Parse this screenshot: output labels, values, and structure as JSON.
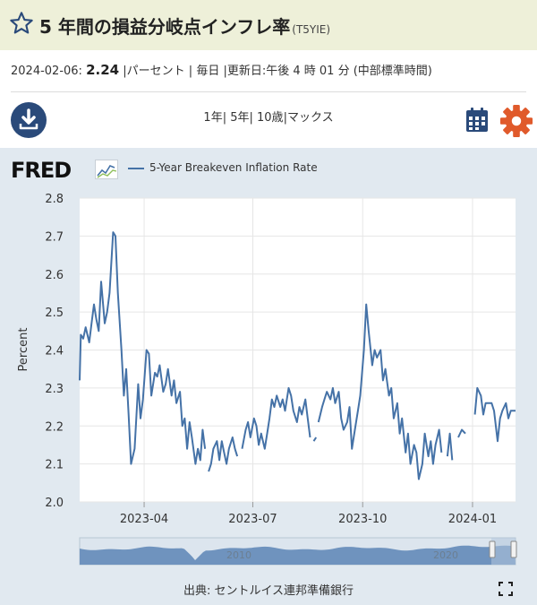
{
  "header": {
    "title": "5 年間の損益分岐点インフレ率",
    "series_code": "(T5YIE)"
  },
  "meta": {
    "date": "2024-02-06:",
    "value": "2.24",
    "unit": "パーセント",
    "frequency": "毎日",
    "updated": "更新日:午後 4 時 01 分 (中部標準時間)"
  },
  "controls": {
    "ranges": [
      "1年",
      "5年",
      "10歳",
      "マックス"
    ],
    "download_icon": "download-icon",
    "calendar_icon": "calendar-icon",
    "settings_icon": "gear-icon"
  },
  "logo": {
    "text": "FRED"
  },
  "footer": {
    "source": "出典: セントルイス連邦準備銀行"
  },
  "colors": {
    "line": "#4572a7",
    "settings": "#e05a2b",
    "icon_dark": "#2a4a7a",
    "title_bg": "#eef0d9",
    "panel_bg": "#e1e9f0"
  },
  "chart_data": {
    "type": "line",
    "ylabel": "Percent",
    "ylim": [
      2.0,
      2.8
    ],
    "yticks": [
      2.0,
      2.1,
      2.2,
      2.3,
      2.4,
      2.5,
      2.6,
      2.7,
      2.8
    ],
    "xlim": [
      "2023-02-06",
      "2024-02-06"
    ],
    "xticks": [
      {
        "date": "2023-04-01",
        "label": "2023-04"
      },
      {
        "date": "2023-07-01",
        "label": "2023-07"
      },
      {
        "date": "2023-10-01",
        "label": "2023-10"
      },
      {
        "date": "2024-01-01",
        "label": "2024-01"
      }
    ],
    "navigator_labels": [
      {
        "year": 2010,
        "label": "2010"
      },
      {
        "year": 2020,
        "label": "2020"
      }
    ],
    "series": [
      {
        "name": "5-Year Breakeven Inflation Rate",
        "segments": [
          [
            [
              "2023-02-06",
              2.32
            ],
            [
              "2023-02-07",
              2.44
            ],
            [
              "2023-02-09",
              2.43
            ],
            [
              "2023-02-11",
              2.46
            ],
            [
              "2023-02-14",
              2.42
            ],
            [
              "2023-02-16",
              2.47
            ],
            [
              "2023-02-18",
              2.52
            ],
            [
              "2023-02-20",
              2.48
            ],
            [
              "2023-02-22",
              2.45
            ],
            [
              "2023-02-24",
              2.58
            ],
            [
              "2023-02-27",
              2.47
            ],
            [
              "2023-03-01",
              2.5
            ],
            [
              "2023-03-03",
              2.55
            ],
            [
              "2023-03-06",
              2.71
            ],
            [
              "2023-03-08",
              2.7
            ],
            [
              "2023-03-10",
              2.55
            ],
            [
              "2023-03-13",
              2.4
            ],
            [
              "2023-03-15",
              2.28
            ],
            [
              "2023-03-17",
              2.35
            ],
            [
              "2023-03-19",
              2.23
            ],
            [
              "2023-03-21",
              2.1
            ],
            [
              "2023-03-24",
              2.14
            ],
            [
              "2023-03-27",
              2.31
            ],
            [
              "2023-03-29",
              2.22
            ],
            [
              "2023-03-31",
              2.27
            ],
            [
              "2023-04-03",
              2.4
            ],
            [
              "2023-04-05",
              2.39
            ],
            [
              "2023-04-07",
              2.28
            ],
            [
              "2023-04-10",
              2.34
            ],
            [
              "2023-04-12",
              2.33
            ],
            [
              "2023-04-14",
              2.36
            ],
            [
              "2023-04-17",
              2.29
            ],
            [
              "2023-04-19",
              2.31
            ],
            [
              "2023-04-21",
              2.35
            ],
            [
              "2023-04-24",
              2.28
            ],
            [
              "2023-04-26",
              2.32
            ],
            [
              "2023-04-28",
              2.26
            ],
            [
              "2023-05-01",
              2.29
            ],
            [
              "2023-05-03",
              2.2
            ],
            [
              "2023-05-05",
              2.22
            ],
            [
              "2023-05-07",
              2.14
            ],
            [
              "2023-05-09",
              2.21
            ],
            [
              "2023-05-11",
              2.17
            ],
            [
              "2023-05-14",
              2.1
            ],
            [
              "2023-05-16",
              2.14
            ],
            [
              "2023-05-18",
              2.11
            ],
            [
              "2023-05-20",
              2.19
            ],
            [
              "2023-05-22",
              2.14
            ]
          ],
          [
            [
              "2023-05-25",
              2.08
            ],
            [
              "2023-05-27",
              2.1
            ],
            [
              "2023-05-29",
              2.14
            ],
            [
              "2023-06-01",
              2.16
            ],
            [
              "2023-06-03",
              2.11
            ],
            [
              "2023-06-05",
              2.16
            ],
            [
              "2023-06-07",
              2.13
            ],
            [
              "2023-06-09",
              2.1
            ],
            [
              "2023-06-11",
              2.14
            ],
            [
              "2023-06-14",
              2.17
            ],
            [
              "2023-06-16",
              2.14
            ],
            [
              "2023-06-18",
              2.12
            ]
          ],
          [
            [
              "2023-06-22",
              2.14
            ],
            [
              "2023-06-25",
              2.19
            ],
            [
              "2023-06-27",
              2.21
            ],
            [
              "2023-06-29",
              2.17
            ],
            [
              "2023-07-02",
              2.22
            ],
            [
              "2023-07-04",
              2.2
            ],
            [
              "2023-07-06",
              2.15
            ],
            [
              "2023-07-08",
              2.18
            ],
            [
              "2023-07-11",
              2.14
            ],
            [
              "2023-07-13",
              2.18
            ],
            [
              "2023-07-15",
              2.22
            ],
            [
              "2023-07-17",
              2.27
            ],
            [
              "2023-07-19",
              2.25
            ],
            [
              "2023-07-21",
              2.28
            ],
            [
              "2023-07-24",
              2.25
            ],
            [
              "2023-07-26",
              2.27
            ],
            [
              "2023-07-28",
              2.24
            ],
            [
              "2023-07-31",
              2.3
            ],
            [
              "2023-08-02",
              2.28
            ],
            [
              "2023-08-04",
              2.24
            ],
            [
              "2023-08-07",
              2.21
            ],
            [
              "2023-08-09",
              2.25
            ],
            [
              "2023-08-11",
              2.23
            ],
            [
              "2023-08-14",
              2.27
            ],
            [
              "2023-08-16",
              2.22
            ],
            [
              "2023-08-18",
              2.17
            ]
          ],
          [
            [
              "2023-08-21",
              2.16
            ],
            [
              "2023-08-23",
              2.17
            ]
          ],
          [
            [
              "2023-08-25",
              2.21
            ],
            [
              "2023-08-28",
              2.25
            ],
            [
              "2023-08-30",
              2.27
            ],
            [
              "2023-09-01",
              2.29
            ],
            [
              "2023-09-04",
              2.27
            ],
            [
              "2023-09-06",
              2.3
            ],
            [
              "2023-09-08",
              2.26
            ],
            [
              "2023-09-11",
              2.29
            ],
            [
              "2023-09-13",
              2.22
            ],
            [
              "2023-09-15",
              2.19
            ],
            [
              "2023-09-18",
              2.21
            ],
            [
              "2023-09-20",
              2.25
            ],
            [
              "2023-09-22",
              2.14
            ],
            [
              "2023-09-25",
              2.2
            ],
            [
              "2023-09-27",
              2.24
            ],
            [
              "2023-09-29",
              2.28
            ],
            [
              "2023-10-02",
              2.4
            ],
            [
              "2023-10-04",
              2.52
            ],
            [
              "2023-10-06",
              2.45
            ],
            [
              "2023-10-09",
              2.36
            ],
            [
              "2023-10-11",
              2.4
            ],
            [
              "2023-10-13",
              2.38
            ],
            [
              "2023-10-16",
              2.4
            ],
            [
              "2023-10-18",
              2.32
            ],
            [
              "2023-10-20",
              2.35
            ],
            [
              "2023-10-23",
              2.28
            ],
            [
              "2023-10-25",
              2.3
            ],
            [
              "2023-10-27",
              2.22
            ],
            [
              "2023-10-30",
              2.26
            ],
            [
              "2023-11-01",
              2.18
            ],
            [
              "2023-11-03",
              2.22
            ],
            [
              "2023-11-06",
              2.13
            ],
            [
              "2023-11-08",
              2.18
            ],
            [
              "2023-11-10",
              2.1
            ],
            [
              "2023-11-13",
              2.15
            ],
            [
              "2023-11-15",
              2.13
            ],
            [
              "2023-11-17",
              2.06
            ],
            [
              "2023-11-20",
              2.1
            ],
            [
              "2023-11-22",
              2.18
            ],
            [
              "2023-11-25",
              2.12
            ],
            [
              "2023-11-27",
              2.16
            ],
            [
              "2023-11-29",
              2.1
            ],
            [
              "2023-12-01",
              2.15
            ],
            [
              "2023-12-04",
              2.19
            ],
            [
              "2023-12-06",
              2.13
            ]
          ],
          [
            [
              "2023-12-11",
              2.12
            ],
            [
              "2023-12-13",
              2.18
            ],
            [
              "2023-12-15",
              2.11
            ]
          ],
          [
            [
              "2023-12-20",
              2.17
            ],
            [
              "2023-12-23",
              2.19
            ],
            [
              "2023-12-26",
              2.18
            ]
          ],
          [
            [
              "2024-01-03",
              2.23
            ],
            [
              "2024-01-05",
              2.3
            ],
            [
              "2024-01-08",
              2.28
            ],
            [
              "2024-01-10",
              2.23
            ],
            [
              "2024-01-12",
              2.26
            ],
            [
              "2024-01-15",
              2.26
            ],
            [
              "2024-01-17",
              2.26
            ],
            [
              "2024-01-19",
              2.24
            ],
            [
              "2024-01-22",
              2.16
            ],
            [
              "2024-01-24",
              2.22
            ],
            [
              "2024-01-26",
              2.24
            ],
            [
              "2024-01-29",
              2.26
            ],
            [
              "2024-01-31",
              2.22
            ],
            [
              "2024-02-02",
              2.24
            ],
            [
              "2024-02-06",
              2.24
            ]
          ]
        ]
      }
    ]
  }
}
